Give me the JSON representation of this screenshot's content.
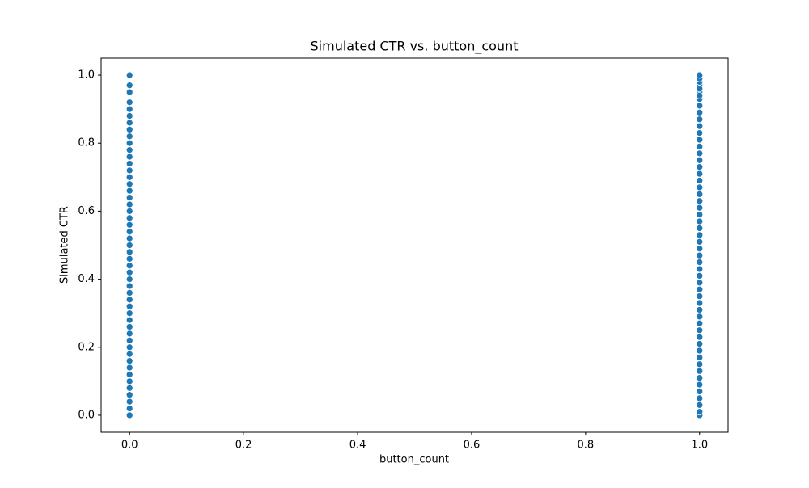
{
  "chart_data": {
    "type": "scatter",
    "title": "Simulated CTR vs. button_count",
    "x_label": "button_count",
    "y_label": "Simulated CTR",
    "color": "#1f77b4",
    "x": [
      0,
      0,
      0,
      0,
      0,
      0,
      0,
      0,
      0,
      0,
      0,
      0,
      0,
      0,
      0,
      0,
      0,
      0,
      0,
      0,
      0,
      0,
      0,
      0,
      0,
      0,
      0,
      0,
      0,
      0,
      0,
      0,
      0,
      0,
      0,
      0,
      0,
      0,
      0,
      0,
      0,
      0,
      0,
      0,
      0,
      0,
      0,
      0,
      0,
      0,
      1,
      1,
      1,
      1,
      1,
      1,
      1,
      1,
      1,
      1,
      1,
      1,
      1,
      1,
      1,
      1,
      1,
      1,
      1,
      1,
      1,
      1,
      1,
      1,
      1,
      1,
      1,
      1,
      1,
      1,
      1,
      1,
      1,
      1,
      1,
      1,
      1,
      1,
      1,
      1,
      1,
      1,
      1,
      1,
      1,
      1,
      1,
      1,
      1,
      1,
      1,
      1,
      1,
      1,
      1
    ],
    "values": [
      0.0,
      0.02,
      0.04,
      0.06,
      0.08,
      0.1,
      0.12,
      0.14,
      0.16,
      0.18,
      0.2,
      0.22,
      0.24,
      0.26,
      0.28,
      0.3,
      0.32,
      0.34,
      0.36,
      0.38,
      0.4,
      0.42,
      0.44,
      0.46,
      0.48,
      0.5,
      0.52,
      0.54,
      0.56,
      0.58,
      0.6,
      0.62,
      0.64,
      0.66,
      0.68,
      0.7,
      0.72,
      0.74,
      0.76,
      0.78,
      0.8,
      0.82,
      0.84,
      0.86,
      0.88,
      0.9,
      0.92,
      0.95,
      0.97,
      1.0,
      0.0,
      0.01,
      0.03,
      0.05,
      0.07,
      0.09,
      0.11,
      0.13,
      0.15,
      0.17,
      0.19,
      0.21,
      0.23,
      0.25,
      0.27,
      0.29,
      0.31,
      0.33,
      0.35,
      0.37,
      0.39,
      0.41,
      0.43,
      0.45,
      0.47,
      0.49,
      0.51,
      0.53,
      0.55,
      0.57,
      0.59,
      0.61,
      0.63,
      0.65,
      0.67,
      0.69,
      0.71,
      0.73,
      0.75,
      0.77,
      0.79,
      0.81,
      0.83,
      0.85,
      0.87,
      0.89,
      0.91,
      0.93,
      0.95,
      0.97,
      0.98,
      0.99,
      1.0,
      0.96,
      0.94
    ],
    "xlim": [
      -0.05,
      1.05
    ],
    "ylim": [
      -0.05,
      1.05
    ],
    "xticks": [
      {
        "value": 0,
        "label": "0.0"
      },
      {
        "value": 0.2,
        "label": "0.2"
      },
      {
        "value": 0.4,
        "label": "0.4"
      },
      {
        "value": 0.6,
        "label": "0.6"
      },
      {
        "value": 0.8,
        "label": "0.8"
      },
      {
        "value": 1,
        "label": "1.0"
      }
    ],
    "yticks": [
      {
        "value": 0,
        "label": "0.0"
      },
      {
        "value": 0.2,
        "label": "0.2"
      },
      {
        "value": 0.4,
        "label": "0.4"
      },
      {
        "value": 0.6,
        "label": "0.6"
      },
      {
        "value": 0.8,
        "label": "0.8"
      },
      {
        "value": 1,
        "label": "1.0"
      }
    ]
  }
}
